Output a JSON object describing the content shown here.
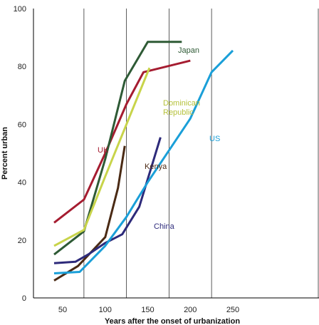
{
  "chart_data": {
    "type": "line",
    "xlabel": "Years after the onset of urbanization",
    "ylabel": "Percent urban",
    "xlim": [
      0,
      260
    ],
    "ylim": [
      0,
      100
    ],
    "x_ticks": [
      "50",
      "100",
      "150",
      "200",
      "250"
    ],
    "y_ticks": [
      "0",
      "20",
      "40",
      "60",
      "80",
      "100"
    ],
    "grid": "vertical",
    "series": [
      {
        "name": "UK",
        "color": "#a51c30",
        "x": [
          40,
          75,
          100,
          125,
          145,
          200
        ],
        "y": [
          26,
          34,
          50,
          67,
          78,
          82
        ]
      },
      {
        "name": "Japan",
        "color": "#2e5a35",
        "x": [
          40,
          75,
          100,
          123,
          150,
          190
        ],
        "y": [
          15,
          23,
          48,
          75,
          88.5,
          88.5
        ]
      },
      {
        "name": "Dominican Republic",
        "color": "#c8d44a",
        "x": [
          40,
          75,
          100,
          125,
          152
        ],
        "y": [
          18,
          23.5,
          42,
          60,
          79.5
        ]
      },
      {
        "name": "Kenya",
        "color": "#4a2a14",
        "x": [
          40,
          68,
          100,
          115,
          123
        ],
        "y": [
          6,
          11,
          21,
          38,
          52.5
        ]
      },
      {
        "name": "China",
        "color": "#2d2a7a",
        "x": [
          40,
          65,
          80,
          100,
          120,
          140,
          165
        ],
        "y": [
          12,
          12.5,
          15,
          19,
          22,
          31.5,
          55.5
        ]
      },
      {
        "name": "US",
        "color": "#1a9fd8",
        "x": [
          40,
          70,
          100,
          125,
          150,
          200,
          225,
          250
        ],
        "y": [
          8.5,
          9,
          18,
          28,
          40,
          62,
          78,
          85.5
        ]
      }
    ],
    "labels": [
      "Japan",
      "Dominican",
      "Republic",
      "UK",
      "Kenya",
      "US",
      "China"
    ]
  }
}
